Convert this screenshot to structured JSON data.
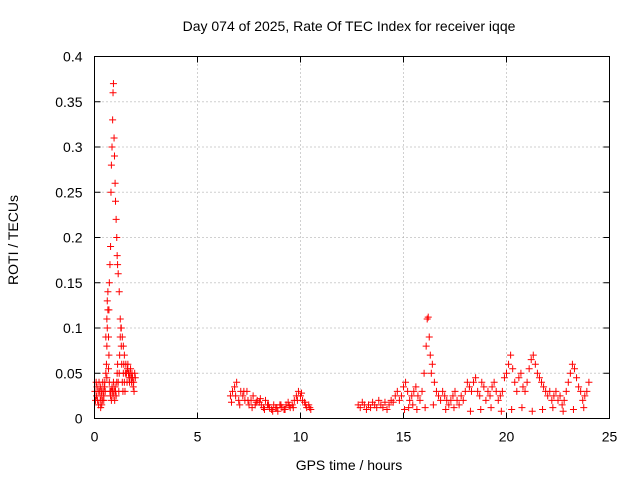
{
  "chart_data": {
    "type": "scatter",
    "title": "Day 074 of 2025, Rate Of TEC Index for receiver iqqe",
    "xlabel": "GPS time / hours",
    "ylabel": "ROTI / TECUs",
    "xlim": [
      0,
      25
    ],
    "ylim": [
      0,
      0.4
    ],
    "xticks": [
      0,
      5,
      10,
      15,
      20,
      25
    ],
    "yticks": [
      0,
      0.05,
      0.1,
      0.15,
      0.2,
      0.25,
      0.3,
      0.35,
      0.4
    ],
    "xtick_labels": [
      "0",
      "5",
      "10",
      "15",
      "20",
      "25"
    ],
    "ytick_labels": [
      "0",
      "0.05",
      "0.1",
      "0.15",
      "0.2",
      "0.25",
      "0.3",
      "0.35",
      "0.4"
    ],
    "grid": true,
    "marker": "+",
    "marker_color": "#ff0000",
    "series": [
      {
        "values_x": [
          0.02,
          0.05,
          0.08,
          0.1,
          0.12,
          0.15,
          0.18,
          0.2,
          0.22,
          0.25,
          0.28,
          0.3,
          0.32,
          0.35,
          0.38,
          0.4,
          0.42,
          0.45,
          0.48,
          0.5,
          0.52,
          0.55,
          0.58,
          0.6,
          0.62,
          0.65,
          0.68,
          0.7,
          0.72,
          0.75,
          0.78,
          0.8,
          0.82,
          0.85,
          0.88,
          0.9,
          0.92,
          0.95,
          0.98,
          1.0,
          1.02,
          1.05,
          1.08,
          1.1,
          1.12,
          1.15,
          1.18,
          1.2,
          1.22,
          1.25,
          1.28,
          1.3,
          1.32,
          1.35,
          1.38,
          1.4,
          1.42,
          1.45,
          1.48,
          1.5,
          1.52,
          1.55,
          1.58,
          1.6,
          1.62,
          1.65,
          1.68,
          1.7,
          1.72,
          1.75,
          1.78,
          1.8,
          1.82,
          1.85,
          1.88,
          1.9,
          1.92,
          1.95,
          1.98,
          0.55,
          0.6,
          0.62,
          0.65,
          0.7,
          0.72,
          0.75,
          0.78,
          0.8,
          0.82,
          0.85,
          0.88,
          0.9,
          0.92,
          0.95,
          0.97,
          1.0,
          1.02,
          1.05,
          1.08,
          1.1,
          1.12,
          1.15,
          1.2,
          1.25,
          1.3,
          1.35,
          1.4,
          1.45,
          0.3,
          0.35,
          0.45,
          0.6,
          0.68
        ],
        "values_y": [
          0.03,
          0.02,
          0.04,
          0.025,
          0.035,
          0.02,
          0.03,
          0.015,
          0.04,
          0.03,
          0.02,
          0.035,
          0.025,
          0.03,
          0.02,
          0.04,
          0.03,
          0.025,
          0.035,
          0.04,
          0.03,
          0.05,
          0.06,
          0.08,
          0.1,
          0.12,
          0.09,
          0.07,
          0.04,
          0.03,
          0.025,
          0.03,
          0.02,
          0.035,
          0.03,
          0.025,
          0.04,
          0.03,
          0.02,
          0.035,
          0.03,
          0.025,
          0.04,
          0.05,
          0.06,
          0.04,
          0.03,
          0.05,
          0.07,
          0.09,
          0.1,
          0.08,
          0.06,
          0.04,
          0.03,
          0.05,
          0.06,
          0.04,
          0.03,
          0.05,
          0.06,
          0.05,
          0.04,
          0.055,
          0.06,
          0.05,
          0.045,
          0.04,
          0.05,
          0.055,
          0.045,
          0.04,
          0.05,
          0.045,
          0.035,
          0.04,
          0.03,
          0.05,
          0.045,
          0.09,
          0.11,
          0.13,
          0.14,
          0.12,
          0.15,
          0.17,
          0.19,
          0.25,
          0.28,
          0.3,
          0.33,
          0.36,
          0.37,
          0.31,
          0.29,
          0.26,
          0.24,
          0.22,
          0.2,
          0.18,
          0.17,
          0.16,
          0.14,
          0.11,
          0.1,
          0.09,
          0.08,
          0.07,
          0.012,
          0.015,
          0.02,
          0.045,
          0.055
        ]
      },
      {
        "values_x": [
          6.6,
          6.7,
          6.8,
          6.9,
          7.0,
          7.1,
          7.2,
          7.3,
          7.4,
          7.5,
          7.6,
          7.7,
          7.8,
          7.9,
          8.0,
          8.1,
          8.2,
          8.3,
          8.4,
          8.5,
          8.6,
          8.7,
          8.8,
          8.9,
          9.0,
          9.1,
          9.2,
          9.3,
          9.4,
          9.5,
          9.6,
          9.7,
          9.8,
          9.9,
          10.0,
          10.1,
          10.2,
          10.3,
          10.4,
          10.5,
          6.65,
          6.85,
          7.05,
          7.25,
          7.45,
          7.65,
          7.85,
          8.05,
          8.25,
          8.45,
          8.65,
          8.85,
          9.05,
          9.25,
          9.45,
          9.65,
          9.85,
          10.05,
          10.25,
          10.45
        ],
        "values_y": [
          0.025,
          0.03,
          0.035,
          0.04,
          0.02,
          0.03,
          0.025,
          0.02,
          0.03,
          0.015,
          0.02,
          0.025,
          0.015,
          0.02,
          0.018,
          0.015,
          0.012,
          0.02,
          0.015,
          0.012,
          0.01,
          0.015,
          0.012,
          0.008,
          0.015,
          0.012,
          0.01,
          0.015,
          0.018,
          0.012,
          0.015,
          0.02,
          0.025,
          0.03,
          0.025,
          0.02,
          0.018,
          0.012,
          0.015,
          0.01,
          0.018,
          0.025,
          0.015,
          0.03,
          0.02,
          0.012,
          0.018,
          0.022,
          0.01,
          0.015,
          0.008,
          0.012,
          0.015,
          0.01,
          0.014,
          0.012,
          0.02,
          0.028,
          0.015,
          0.012
        ]
      },
      {
        "values_x": [
          12.8,
          12.9,
          13.0,
          13.1,
          13.2,
          13.3,
          13.4,
          13.5,
          13.6,
          13.7,
          13.8,
          13.9,
          14.0,
          14.1,
          14.2,
          14.3,
          14.4,
          14.5,
          14.6,
          14.7,
          14.8,
          14.9,
          15.0,
          15.1,
          15.2,
          15.3,
          15.4,
          15.5,
          15.6,
          15.7,
          15.8,
          15.9,
          16.0,
          16.1,
          16.15,
          16.2,
          16.25,
          16.3,
          16.35,
          16.4,
          16.5,
          16.6,
          16.7,
          16.8,
          16.9,
          17.0,
          17.1,
          17.2,
          17.3,
          17.4,
          17.5,
          17.6,
          17.7,
          17.8,
          17.9,
          18.0,
          18.1,
          18.2,
          18.3,
          18.4,
          18.5,
          18.6,
          18.7,
          18.8,
          18.9,
          19.0,
          19.1,
          19.2,
          19.3,
          19.4,
          19.5,
          19.6,
          19.7,
          19.8,
          19.9,
          20.0,
          20.1,
          20.2,
          20.3,
          20.4,
          20.5,
          20.6,
          20.7,
          20.8,
          20.9,
          21.0,
          21.1,
          21.2,
          21.3,
          21.4,
          21.5,
          21.6,
          21.7,
          21.8,
          21.9,
          22.0,
          22.1,
          22.2,
          22.3,
          22.4,
          22.5,
          22.6,
          22.7,
          22.8,
          22.9,
          23.0,
          23.1,
          23.2,
          23.3,
          23.4,
          23.5,
          23.6,
          23.7,
          23.8,
          23.9,
          24.0,
          15.05,
          15.25,
          15.45,
          15.65,
          16.05,
          16.45,
          17.05,
          17.45,
          18.25,
          18.75,
          19.25,
          19.75,
          20.25,
          20.75,
          21.25,
          21.75,
          22.25,
          22.75,
          23.25,
          23.75
        ],
        "values_y": [
          0.015,
          0.012,
          0.018,
          0.015,
          0.01,
          0.015,
          0.012,
          0.018,
          0.015,
          0.012,
          0.02,
          0.015,
          0.012,
          0.018,
          0.01,
          0.015,
          0.02,
          0.018,
          0.025,
          0.03,
          0.02,
          0.025,
          0.035,
          0.04,
          0.03,
          0.02,
          0.025,
          0.03,
          0.035,
          0.025,
          0.02,
          0.03,
          0.05,
          0.08,
          0.11,
          0.112,
          0.09,
          0.07,
          0.05,
          0.06,
          0.04,
          0.03,
          0.025,
          0.02,
          0.03,
          0.025,
          0.02,
          0.015,
          0.02,
          0.025,
          0.03,
          0.02,
          0.015,
          0.025,
          0.02,
          0.03,
          0.04,
          0.035,
          0.03,
          0.04,
          0.045,
          0.03,
          0.025,
          0.04,
          0.035,
          0.02,
          0.03,
          0.025,
          0.035,
          0.04,
          0.03,
          0.02,
          0.025,
          0.03,
          0.045,
          0.05,
          0.06,
          0.07,
          0.055,
          0.04,
          0.03,
          0.045,
          0.05,
          0.035,
          0.03,
          0.04,
          0.055,
          0.065,
          0.07,
          0.06,
          0.05,
          0.045,
          0.04,
          0.035,
          0.03,
          0.025,
          0.03,
          0.02,
          0.025,
          0.03,
          0.02,
          0.025,
          0.015,
          0.02,
          0.03,
          0.04,
          0.05,
          0.06,
          0.055,
          0.045,
          0.035,
          0.03,
          0.02,
          0.025,
          0.03,
          0.04,
          0.01,
          0.012,
          0.015,
          0.01,
          0.012,
          0.015,
          0.01,
          0.012,
          0.008,
          0.01,
          0.012,
          0.008,
          0.01,
          0.012,
          0.008,
          0.01,
          0.012,
          0.008,
          0.01,
          0.012
        ]
      }
    ]
  }
}
